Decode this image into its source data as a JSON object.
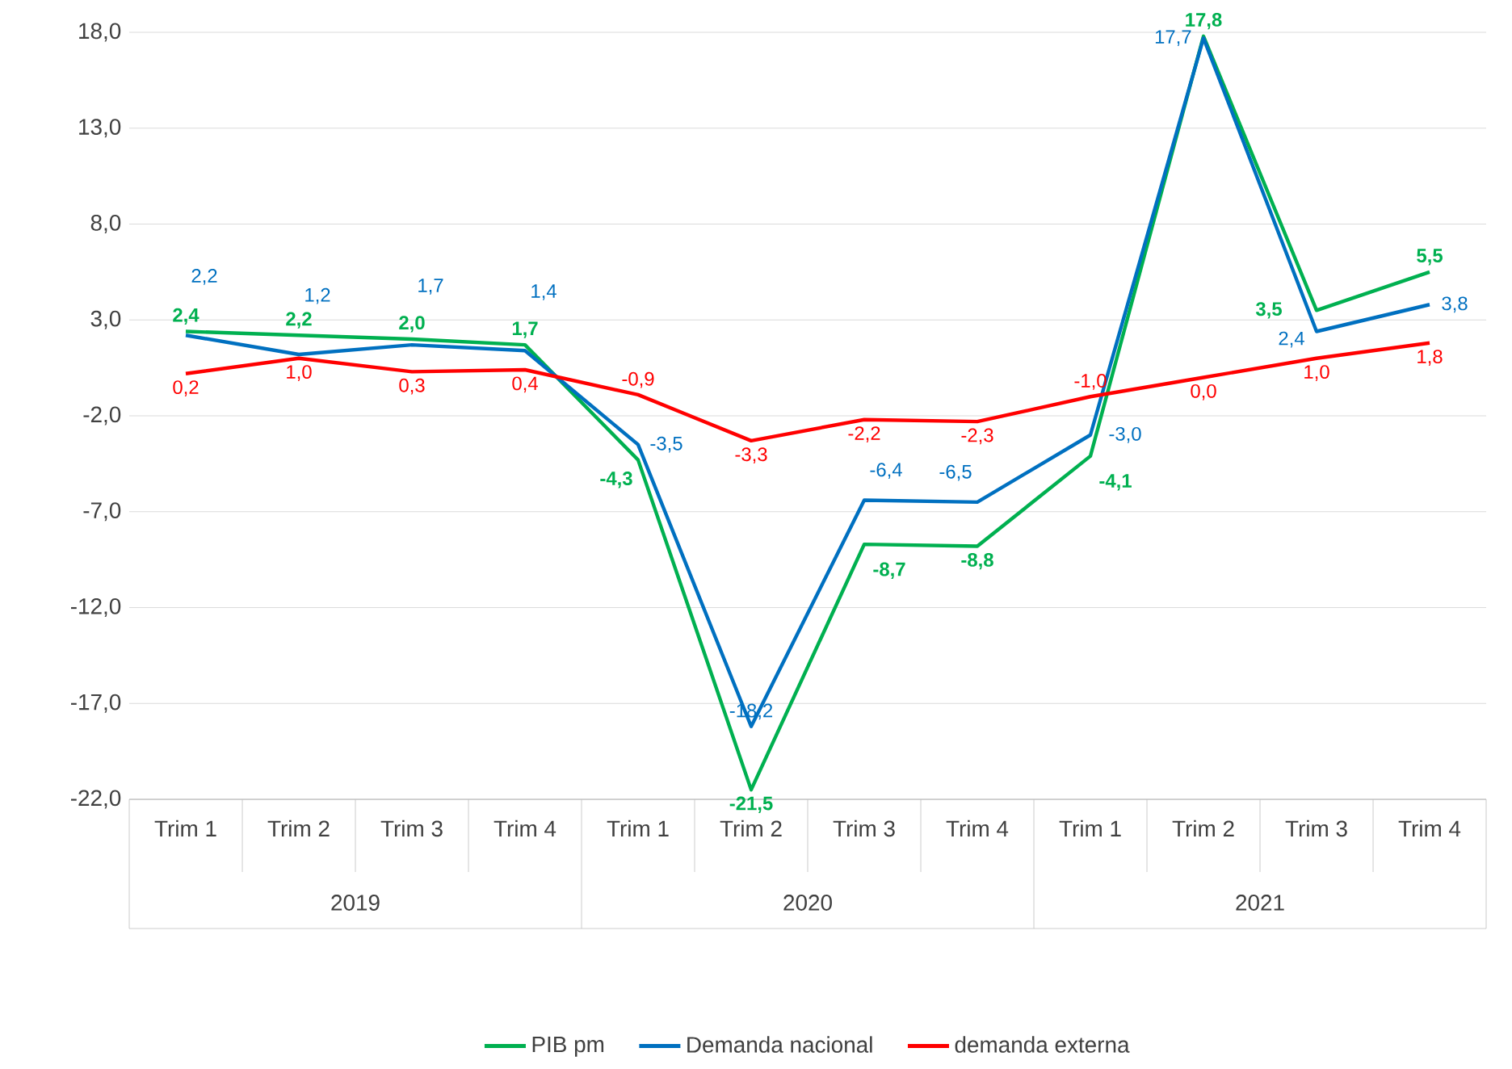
{
  "chart_data": {
    "type": "line",
    "categories": [
      "Trim 1",
      "Trim 2",
      "Trim 3",
      "Trim 4",
      "Trim 1",
      "Trim 2",
      "Trim 3",
      "Trim 4",
      "Trim 1",
      "Trim 2",
      "Trim 3",
      "Trim 4"
    ],
    "annotations": [
      "2019",
      "2020",
      "2021"
    ],
    "ylim": [
      -22,
      18
    ],
    "yticks": [
      {
        "value": -22,
        "label": "-22,0"
      },
      {
        "value": -17,
        "label": "-17,0"
      },
      {
        "value": -12,
        "label": "-12,0"
      },
      {
        "value": -7,
        "label": "-7,0"
      },
      {
        "value": -2,
        "label": "-2,0"
      },
      {
        "value": 3,
        "label": "3,0"
      },
      {
        "value": 8,
        "label": "8,0"
      },
      {
        "value": 13,
        "label": "13,0"
      },
      {
        "value": 18,
        "label": "18,0"
      }
    ],
    "grid": "y",
    "legend": "bottom",
    "marker": "none",
    "line_style": "solid",
    "series": [
      {
        "name": "PIB pm",
        "color": "#00b050",
        "values": [
          2.4,
          2.2,
          2.0,
          1.7,
          -4.3,
          -21.5,
          -8.7,
          -8.8,
          -4.1,
          17.8,
          3.5,
          5.5
        ],
        "value_labels": [
          "2,4",
          "2,2",
          "2,0",
          "1,7",
          "-4,3",
          "-21,5",
          "-8,7",
          "-8,8",
          "-4,1",
          "17,8",
          "3,5",
          "5,5"
        ]
      },
      {
        "name": "Demanda nacional",
        "color": "#0070c0",
        "values": [
          2.2,
          1.2,
          1.7,
          1.4,
          -3.5,
          -18.2,
          -6.4,
          -6.5,
          -3.0,
          17.7,
          2.4,
          3.8
        ],
        "value_labels": [
          "2,2",
          "1,2",
          "1,7",
          "1,4",
          "-3,5",
          "-18,2",
          "-6,4",
          "-6,5",
          "-3,0",
          "17,7",
          "2,4",
          "3,8"
        ]
      },
      {
        "name": "demanda externa",
        "color": "#ff0000",
        "values": [
          0.2,
          1.0,
          0.3,
          0.4,
          -0.9,
          -3.3,
          -2.2,
          -2.3,
          -1.0,
          0.0,
          1.0,
          1.8
        ],
        "value_labels": [
          "0,2",
          "1,0",
          "0,3",
          "0,4",
          "-0,9",
          "-3,3",
          "-2,2",
          "-2,3",
          "-1,0",
          "0,0",
          "1,0",
          "1,8"
        ]
      }
    ]
  }
}
